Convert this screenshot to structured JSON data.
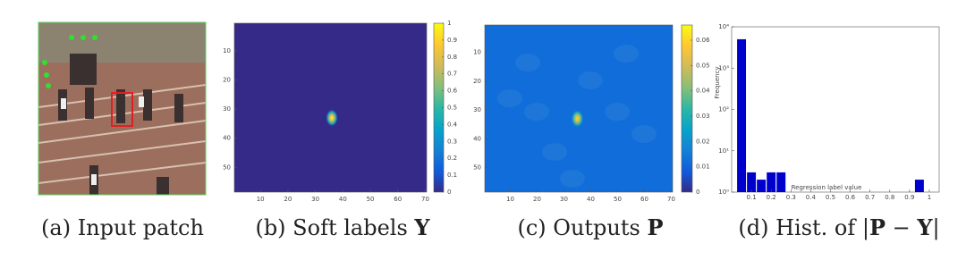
{
  "captions": [
    [
      {
        "text": "(a) Input patch",
        "bold": false
      }
    ],
    [
      {
        "text": "(b) Soft labels ",
        "bold": false
      },
      {
        "text": "Y",
        "bold": true
      }
    ],
    [
      {
        "text": "(c) Outputs ",
        "bold": false
      },
      {
        "text": "P",
        "bold": true
      }
    ],
    [
      {
        "text": "(d) Hist. of |",
        "bold": false
      },
      {
        "text": "P",
        "bold": true
      },
      {
        "text": " − ",
        "bold": false
      },
      {
        "text": "Y",
        "bold": true
      },
      {
        "text": "|",
        "bold": false
      }
    ]
  ],
  "chart_data": [
    {
      "type": "heatmap",
      "xlim": [
        0.5,
        70.5
      ],
      "ylim": [
        0.5,
        58.5
      ],
      "xticks": [
        10,
        20,
        30,
        40,
        50,
        60,
        70
      ],
      "yticks": [
        10,
        20,
        30,
        40,
        50
      ],
      "clim": [
        0,
        1
      ],
      "cticks": [
        0,
        0.1,
        0.2,
        0.3,
        0.4,
        0.5,
        0.6,
        0.7,
        0.8,
        0.9,
        1
      ],
      "background_value": 0,
      "peak": {
        "x": 36,
        "y": 33,
        "value": 1
      }
    },
    {
      "type": "heatmap",
      "xlim": [
        0.5,
        70.5
      ],
      "ylim": [
        0.5,
        58.5
      ],
      "xticks": [
        10,
        20,
        30,
        40,
        50,
        60,
        70
      ],
      "yticks": [
        10,
        20,
        30,
        40,
        50
      ],
      "clim": [
        0,
        0.066
      ],
      "cticks": [
        0,
        0.01,
        0.02,
        0.03,
        0.04,
        0.05,
        0.06
      ],
      "background_value": 0.012,
      "peak": {
        "x": 35,
        "y": 33,
        "value": 0.06
      }
    },
    {
      "type": "bar",
      "x_label": "Regression label value",
      "y_label": "Frequency",
      "log_y": true,
      "xlim": [
        0,
        1.05
      ],
      "xticks": [
        0.1,
        0.2,
        0.3,
        0.4,
        0.5,
        0.6,
        0.7,
        0.8,
        0.9,
        1
      ],
      "ylim": [
        1,
        10000
      ],
      "yticks": [
        {
          "value": 1,
          "label": "10⁰"
        },
        {
          "value": 10,
          "label": "10¹"
        },
        {
          "value": 100,
          "label": "10²"
        },
        {
          "value": 1000,
          "label": "10³"
        },
        {
          "value": 10000,
          "label": "10⁴"
        }
      ],
      "x": [
        0.05,
        0.1,
        0.15,
        0.2,
        0.25,
        0.95
      ],
      "values": [
        5000,
        3,
        2,
        3,
        3,
        2
      ],
      "color": "#0000cc"
    }
  ]
}
